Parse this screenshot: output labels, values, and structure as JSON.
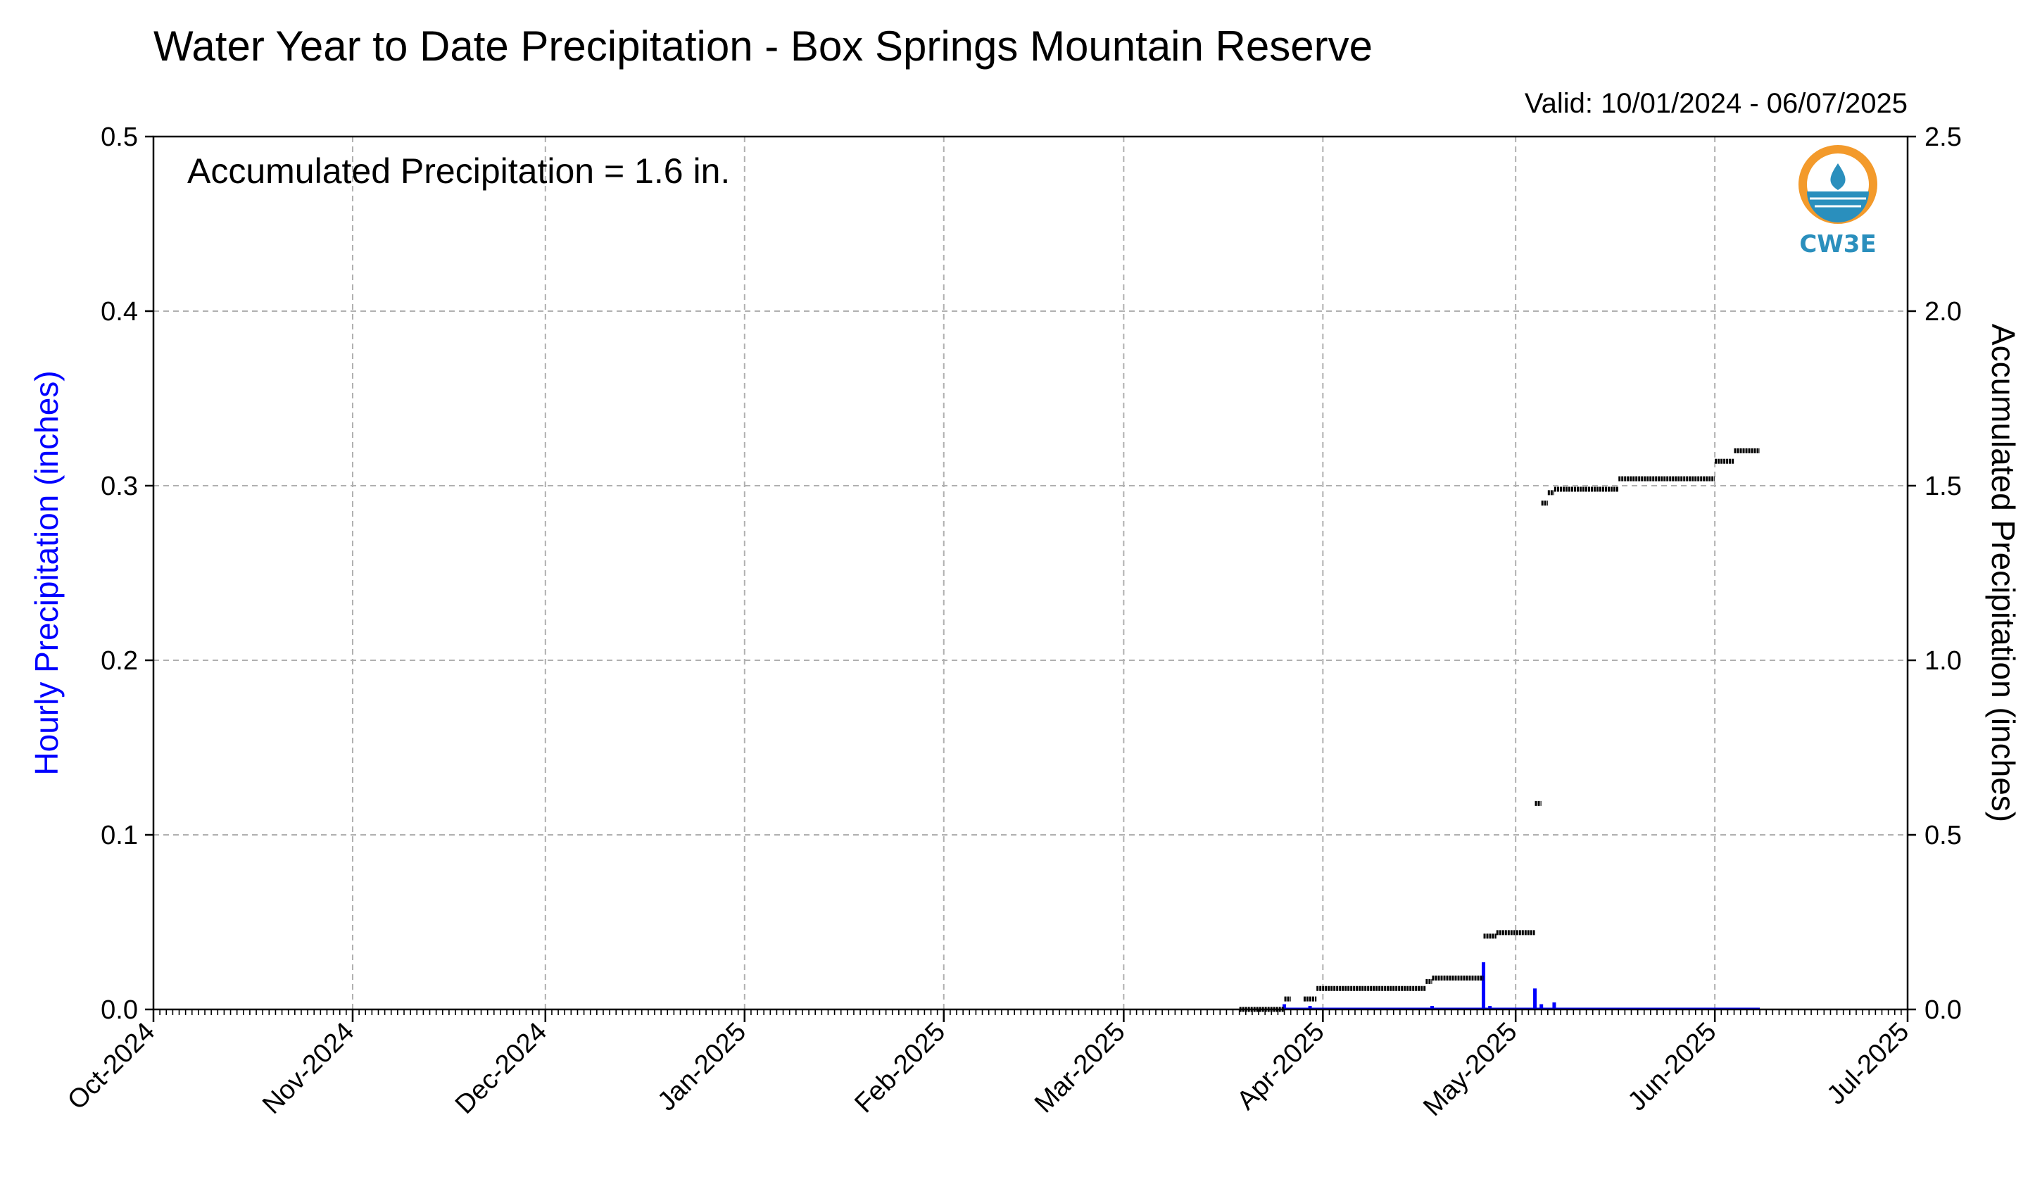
{
  "chart_data": {
    "type": "bar+step",
    "title": "Water Year to Date Precipitation - Box Springs Mountain Reserve",
    "valid_text": "Valid: 10/01/2024 - 06/07/2025",
    "annotation": "Accumulated Precipitation = 1.6 in.",
    "ylabel_left": "Hourly Precipitation (inches)",
    "ylabel_right": "Accumulated Precipitation (inches)",
    "ylim_left": [
      0,
      0.5
    ],
    "ylim_right": [
      0,
      2.5
    ],
    "yticks_left": [
      "0.0",
      "0.1",
      "0.2",
      "0.3",
      "0.4",
      "0.5"
    ],
    "yticks_right": [
      "0.0",
      "0.5",
      "1.0",
      "1.5",
      "2.0",
      "2.5"
    ],
    "xlim": [
      "2024-10-01",
      "2025-07-01"
    ],
    "xticks": [
      "Oct-2024",
      "Nov-2024",
      "Dec-2024",
      "Jan-2025",
      "Feb-2025",
      "Mar-2025",
      "Apr-2025",
      "May-2025",
      "Jun-2025",
      "Jul-2025"
    ],
    "grid": true,
    "colors": {
      "hourly": "#0000ff",
      "accumulated": "#000000",
      "grid": "#b0b0b0"
    },
    "series": [
      {
        "name": "Hourly Precipitation (inches)",
        "axis": "left",
        "points": [
          {
            "x": "2025-03-26",
            "y": 0.003
          },
          {
            "x": "2025-03-30",
            "y": 0.002
          },
          {
            "x": "2025-04-18",
            "y": 0.002
          },
          {
            "x": "2025-04-26",
            "y": 0.027
          },
          {
            "x": "2025-04-27",
            "y": 0.002
          },
          {
            "x": "2025-05-04",
            "y": 0.012
          },
          {
            "x": "2025-05-05",
            "y": 0.003
          },
          {
            "x": "2025-05-07",
            "y": 0.004
          }
        ]
      },
      {
        "name": "Accumulated Precipitation (inches)",
        "axis": "right",
        "segments": [
          {
            "start": "2025-03-19",
            "end": "2025-03-26",
            "y": 0.0
          },
          {
            "start": "2025-03-26",
            "end": "2025-03-27",
            "y": 0.03
          },
          {
            "start": "2025-03-29",
            "end": "2025-03-31",
            "y": 0.03
          },
          {
            "start": "2025-03-31",
            "end": "2025-04-17",
            "y": 0.06
          },
          {
            "start": "2025-04-17",
            "end": "2025-04-18",
            "y": 0.08
          },
          {
            "start": "2025-04-18",
            "end": "2025-04-26",
            "y": 0.09
          },
          {
            "start": "2025-04-26",
            "end": "2025-04-28",
            "y": 0.21
          },
          {
            "start": "2025-04-28",
            "end": "2025-05-04",
            "y": 0.22
          },
          {
            "start": "2025-05-04",
            "end": "2025-05-05",
            "y": 0.59
          },
          {
            "start": "2025-05-05",
            "end": "2025-05-06",
            "y": 1.45
          },
          {
            "start": "2025-05-06",
            "end": "2025-05-07",
            "y": 1.48
          },
          {
            "start": "2025-05-07",
            "end": "2025-05-17",
            "y": 1.49
          },
          {
            "start": "2025-05-17",
            "end": "2025-06-01",
            "y": 1.52
          },
          {
            "start": "2025-06-01",
            "end": "2025-06-04",
            "y": 1.57
          },
          {
            "start": "2025-06-04",
            "end": "2025-06-08",
            "y": 1.6
          }
        ]
      }
    ]
  },
  "logo": {
    "text": "CW3E",
    "colors": {
      "orange": "#f39a2b",
      "blue": "#2a8fbd"
    }
  }
}
